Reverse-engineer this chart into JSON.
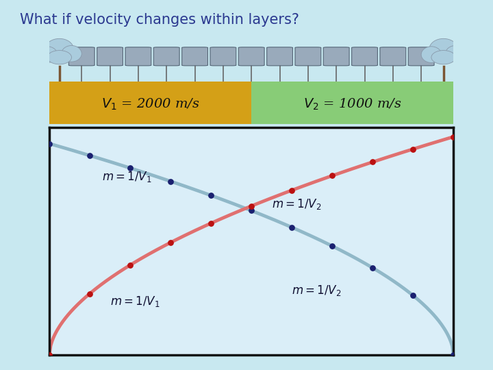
{
  "title": "What if velocity changes within layers?",
  "title_color": "#2B3990",
  "title_fontsize": 15,
  "bg_color": "#c8e8f0",
  "layer1_color": "#D4A017",
  "layer2_color": "#88CC77",
  "line1_color": "#90B8C8",
  "line2_color": "#E07070",
  "dot1_color": "#1A2070",
  "dot2_color": "#BB1111",
  "plot_bg": "#daeef8",
  "plot_border": "#111111",
  "n_dots": 11,
  "annotation_color": "#111133",
  "annotation_fontsize": 12,
  "sensor_color": "#99AABB",
  "tree_color": "#AACCDD",
  "tree_trunk": "#7B5533"
}
